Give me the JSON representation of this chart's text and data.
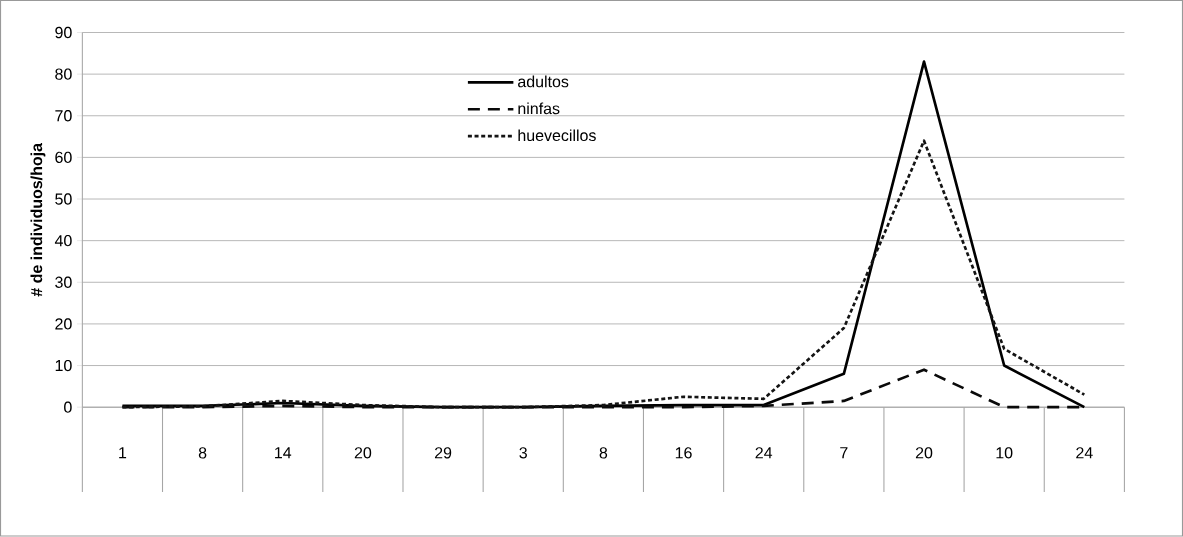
{
  "chart_data": {
    "type": "line",
    "ylabel": "# de individuos/hoja",
    "categories": [
      "1",
      "8",
      "14",
      "20",
      "29",
      "3",
      "8",
      "16",
      "24",
      "7",
      "20",
      "10",
      "24"
    ],
    "series": [
      {
        "name": "adultos",
        "color": "#000000",
        "line_style": "solid",
        "values": [
          0.3,
          0.3,
          1,
          0.3,
          0,
          0,
          0.3,
          0.5,
          0.5,
          8,
          83,
          10,
          0
        ]
      },
      {
        "name": "ninfas",
        "color": "#0a0a0a",
        "line_style": "dashed",
        "values": [
          0,
          0,
          0.3,
          0,
          0,
          0,
          0,
          0,
          0.3,
          1.5,
          9,
          0,
          0
        ]
      },
      {
        "name": "huevecillos",
        "color": "#141414",
        "line_style": "dotted",
        "values": [
          0,
          0.2,
          1.5,
          0.5,
          0,
          0,
          0.5,
          2.5,
          2,
          19,
          64,
          14,
          3
        ]
      }
    ],
    "ylim": [
      0,
      90
    ],
    "yticks": [
      0,
      10,
      20,
      30,
      40,
      50,
      60,
      70,
      80,
      90
    ],
    "grid": "y",
    "legend": "top",
    "marker": "none"
  }
}
